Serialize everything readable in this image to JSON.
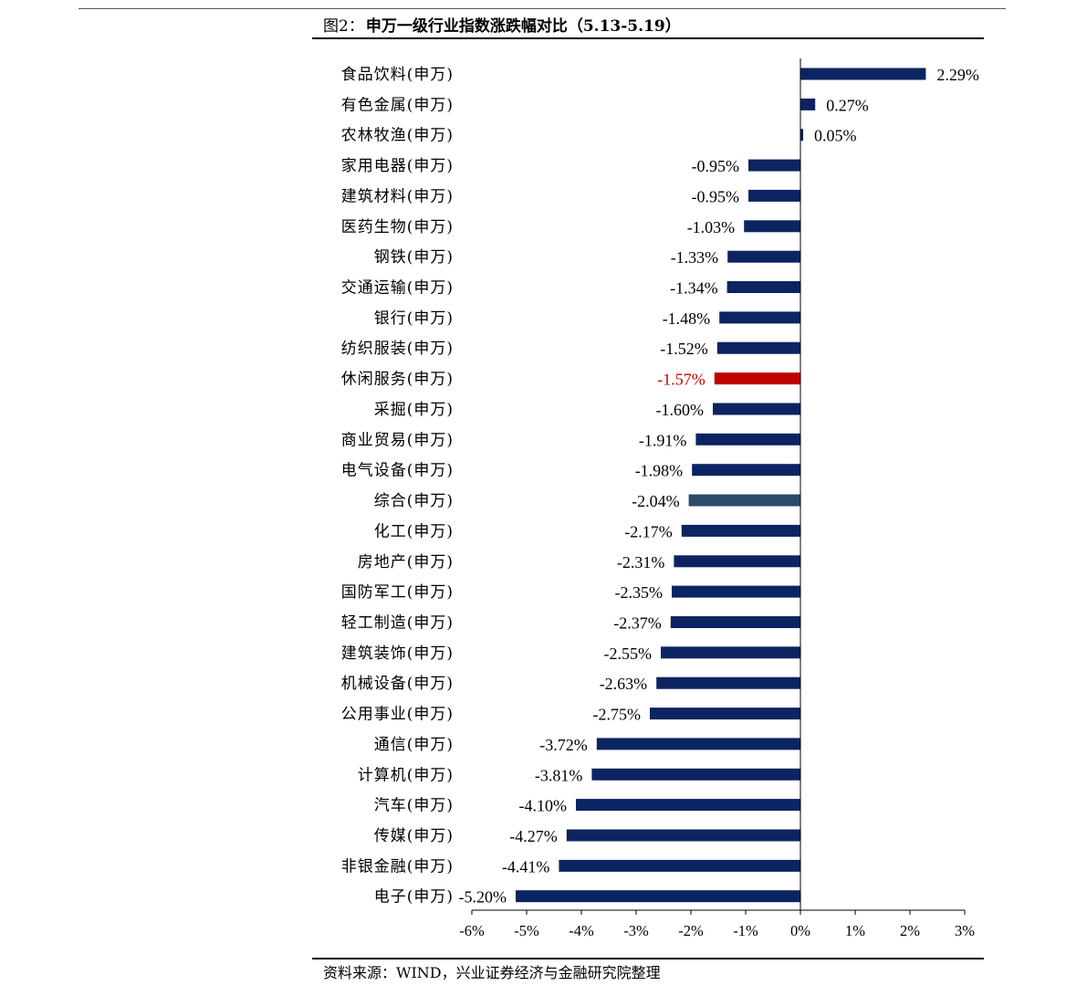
{
  "figure": {
    "label": "图2：",
    "title": "申万一级行业指数涨跌幅对比（5.13-5.19）",
    "source": "资料来源：WIND，兴业证券经济与金融研究院整理"
  },
  "colors": {
    "default_bar": "#0c2461",
    "highlight_bar": "#c00000",
    "special_bar": "#2e4a6b",
    "highlight_label": "#c00000",
    "axis": "#000000"
  },
  "chart_data": {
    "type": "bar",
    "orientation": "horizontal",
    "title": "申万一级行业指数涨跌幅对比（5.13-5.19）",
    "xlabel": "",
    "ylabel": "",
    "xlim": [
      -6,
      3
    ],
    "xticks": [
      -6,
      -5,
      -4,
      -3,
      -2,
      -1,
      0,
      1,
      2,
      3
    ],
    "xtick_labels": [
      "-6%",
      "-5%",
      "-4%",
      "-3%",
      "-2%",
      "-1%",
      "0%",
      "1%",
      "2%",
      "3%"
    ],
    "grid": false,
    "categories": [
      "食品饮料(申万)",
      "有色金属(申万)",
      "农林牧渔(申万)",
      "家用电器(申万)",
      "建筑材料(申万)",
      "医药生物(申万)",
      "钢铁(申万)",
      "交通运输(申万)",
      "银行(申万)",
      "纺织服装(申万)",
      "休闲服务(申万)",
      "采掘(申万)",
      "商业贸易(申万)",
      "电气设备(申万)",
      "综合(申万)",
      "化工(申万)",
      "房地产(申万)",
      "国防军工(申万)",
      "轻工制造(申万)",
      "建筑装饰(申万)",
      "机械设备(申万)",
      "公用事业(申万)",
      "通信(申万)",
      "计算机(申万)",
      "汽车(申万)",
      "传媒(申万)",
      "非银金融(申万)",
      "电子(申万)"
    ],
    "values": [
      2.29,
      0.27,
      0.05,
      -0.95,
      -0.95,
      -1.03,
      -1.33,
      -1.34,
      -1.48,
      -1.52,
      -1.57,
      -1.6,
      -1.91,
      -1.98,
      -2.04,
      -2.17,
      -2.31,
      -2.35,
      -2.37,
      -2.55,
      -2.63,
      -2.75,
      -3.72,
      -3.81,
      -4.1,
      -4.27,
      -4.41,
      -5.2
    ],
    "value_labels": [
      "2.29%",
      "0.27%",
      "0.05%",
      "-0.95%",
      "-0.95%",
      "-1.03%",
      "-1.33%",
      "-1.34%",
      "-1.48%",
      "-1.52%",
      "-1.57%",
      "-1.60%",
      "-1.91%",
      "-1.98%",
      "-2.04%",
      "-2.17%",
      "-2.31%",
      "-2.35%",
      "-2.37%",
      "-2.55%",
      "-2.63%",
      "-2.75%",
      "-3.72%",
      "-3.81%",
      "-4.10%",
      "-4.27%",
      "-4.41%",
      "-5.20%"
    ],
    "highlight": [
      "休闲服务(申万)"
    ],
    "special": [
      "综合(申万)"
    ]
  }
}
